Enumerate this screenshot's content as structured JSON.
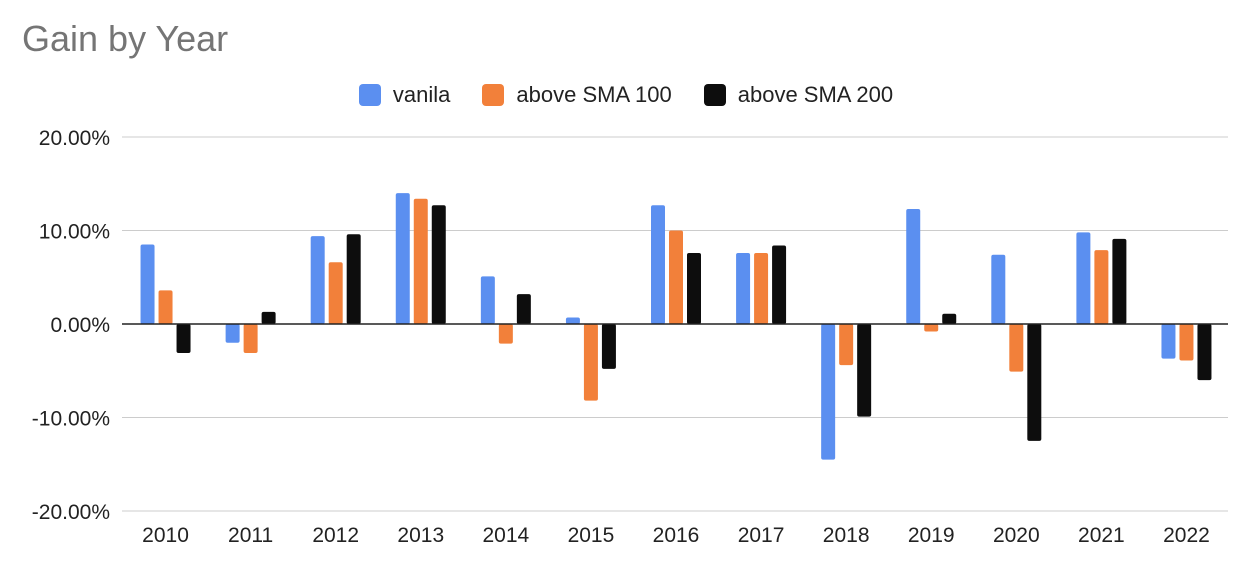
{
  "chart_data": {
    "type": "bar",
    "title": "Gain by Year",
    "xlabel": "",
    "ylabel": "",
    "ylim": [
      -0.2,
      0.2
    ],
    "yticks": [
      "20.00%",
      "10.00%",
      "0.00%",
      "-10.00%",
      "-20.00%"
    ],
    "ytick_values": [
      0.2,
      0.1,
      0.0,
      -0.1,
      -0.2
    ],
    "grid": true,
    "legend": "top-center",
    "categories": [
      "2010",
      "2011",
      "2012",
      "2013",
      "2014",
      "2015",
      "2016",
      "2017",
      "2018",
      "2019",
      "2020",
      "2021",
      "2022"
    ],
    "series": [
      {
        "name": "vanila",
        "color": "#5b8ff0",
        "values": [
          0.085,
          -0.02,
          0.094,
          0.14,
          0.051,
          0.007,
          0.127,
          0.076,
          -0.145,
          0.123,
          0.074,
          0.098,
          -0.037
        ]
      },
      {
        "name": "above SMA 100",
        "color": "#f2803a",
        "values": [
          0.036,
          -0.031,
          0.066,
          0.134,
          -0.021,
          -0.082,
          0.1,
          0.076,
          -0.044,
          -0.008,
          -0.051,
          0.079,
          -0.039
        ]
      },
      {
        "name": "above SMA 200",
        "color": "#0d0d0d",
        "values": [
          -0.031,
          0.013,
          0.096,
          0.127,
          0.032,
          -0.048,
          0.076,
          0.084,
          -0.099,
          0.011,
          -0.125,
          0.091,
          -0.06
        ]
      }
    ]
  }
}
